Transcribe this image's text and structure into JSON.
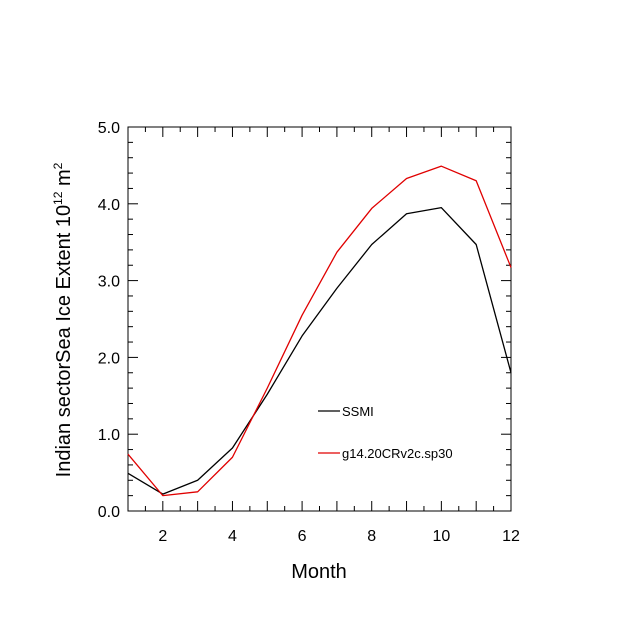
{
  "chart_data": {
    "type": "line",
    "title": "",
    "xlabel": "Month",
    "ylabel_main": "Indian sectorSea Ice Extent 10",
    "ylabel_exp1": "12",
    "ylabel_unit": " m",
    "ylabel_exp2": "2",
    "xlim": [
      1,
      12
    ],
    "ylim": [
      0,
      5
    ],
    "x_ticks": [
      2,
      4,
      6,
      8,
      10,
      12
    ],
    "x_tick_labels": [
      "2",
      "4",
      "6",
      "8",
      "10",
      "12"
    ],
    "y_ticks": [
      0,
      1,
      2,
      3,
      4,
      5
    ],
    "y_tick_labels": [
      "0.0",
      "1.0",
      "2.0",
      "3.0",
      "4.0",
      "5.0"
    ],
    "grid": false,
    "legend_position": "lower-right-center",
    "x": [
      1,
      2,
      3,
      4,
      5,
      6,
      7,
      8,
      9,
      10,
      11,
      12
    ],
    "series": [
      {
        "name": "SSMI",
        "color": "#000000",
        "values": [
          0.49,
          0.22,
          0.4,
          0.82,
          1.52,
          2.28,
          2.9,
          3.47,
          3.87,
          3.95,
          3.47,
          1.8
        ]
      },
      {
        "name": "g14.20CRv2c.sp30",
        "color": "#e00000",
        "values": [
          0.74,
          0.2,
          0.25,
          0.7,
          1.6,
          2.55,
          3.37,
          3.94,
          4.33,
          4.49,
          4.3,
          3.17
        ]
      }
    ]
  }
}
